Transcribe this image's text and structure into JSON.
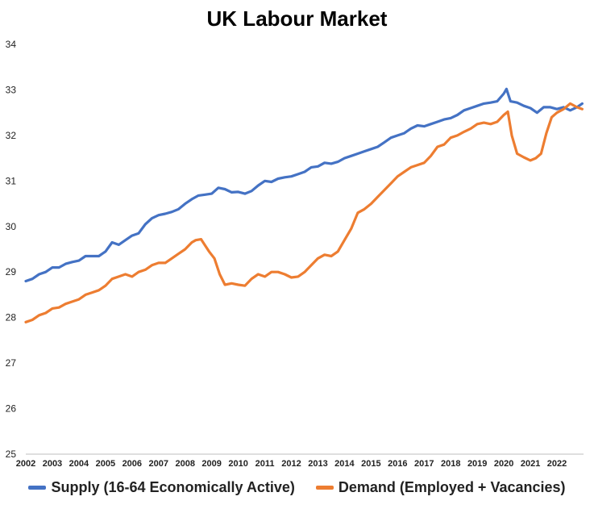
{
  "chart_data": {
    "type": "line",
    "title": "UK Labour Market",
    "xlabel": "",
    "ylabel": "",
    "xlim": [
      2002,
      2023
    ],
    "ylim": [
      25,
      34
    ],
    "grid": false,
    "legend_position": "bottom",
    "x_tick_labels": [
      "2002",
      "2003",
      "2004",
      "2005",
      "2006",
      "2007",
      "2008",
      "2009",
      "2010",
      "2011",
      "2012",
      "2013",
      "2014",
      "2015",
      "2016",
      "2017",
      "2018",
      "2019",
      "2020",
      "2021",
      "2022"
    ],
    "y_tick_labels": [
      "25",
      "26",
      "27",
      "28",
      "29",
      "30",
      "31",
      "32",
      "33",
      "34"
    ],
    "series": [
      {
        "name": "Supply (16-64 Economically Active)",
        "color": "#4472C4",
        "x": [
          2002.0,
          2002.25,
          2002.5,
          2002.75,
          2003.0,
          2003.25,
          2003.5,
          2003.75,
          2004.0,
          2004.25,
          2004.5,
          2004.75,
          2005.0,
          2005.25,
          2005.5,
          2005.75,
          2006.0,
          2006.25,
          2006.5,
          2006.75,
          2007.0,
          2007.25,
          2007.5,
          2007.75,
          2008.0,
          2008.25,
          2008.5,
          2008.75,
          2009.0,
          2009.25,
          2009.5,
          2009.75,
          2010.0,
          2010.25,
          2010.5,
          2010.75,
          2011.0,
          2011.25,
          2011.5,
          2011.75,
          2012.0,
          2012.25,
          2012.5,
          2012.75,
          2013.0,
          2013.25,
          2013.5,
          2013.75,
          2014.0,
          2014.25,
          2014.5,
          2014.75,
          2015.0,
          2015.25,
          2015.5,
          2015.75,
          2016.0,
          2016.25,
          2016.5,
          2016.75,
          2017.0,
          2017.25,
          2017.5,
          2017.75,
          2018.0,
          2018.25,
          2018.5,
          2018.75,
          2019.0,
          2019.25,
          2019.5,
          2019.75,
          2020.0,
          2020.1,
          2020.25,
          2020.5,
          2020.75,
          2021.0,
          2021.25,
          2021.5,
          2021.75,
          2022.0,
          2022.25,
          2022.5,
          2022.75,
          2022.95
        ],
        "values": [
          28.8,
          28.85,
          28.95,
          29.0,
          29.1,
          29.1,
          29.18,
          29.22,
          29.25,
          29.35,
          29.35,
          29.35,
          29.45,
          29.65,
          29.6,
          29.7,
          29.8,
          29.85,
          30.05,
          30.18,
          30.25,
          30.28,
          30.32,
          30.38,
          30.5,
          30.6,
          30.68,
          30.7,
          30.72,
          30.85,
          30.82,
          30.75,
          30.76,
          30.72,
          30.78,
          30.9,
          31.0,
          30.98,
          31.05,
          31.08,
          31.1,
          31.15,
          31.2,
          31.3,
          31.32,
          31.4,
          31.38,
          31.42,
          31.5,
          31.55,
          31.6,
          31.65,
          31.7,
          31.75,
          31.85,
          31.95,
          32.0,
          32.05,
          32.15,
          32.22,
          32.2,
          32.25,
          32.3,
          32.35,
          32.38,
          32.45,
          32.55,
          32.6,
          32.65,
          32.7,
          32.72,
          32.75,
          32.92,
          33.02,
          32.75,
          32.72,
          32.65,
          32.6,
          32.5,
          32.62,
          32.62,
          32.58,
          32.62,
          32.55,
          32.62,
          32.7
        ]
      },
      {
        "name": "Demand (Employed + Vacancies)",
        "color": "#ED7D31",
        "x": [
          2002.0,
          2002.25,
          2002.5,
          2002.75,
          2003.0,
          2003.25,
          2003.5,
          2003.75,
          2004.0,
          2004.25,
          2004.5,
          2004.75,
          2005.0,
          2005.25,
          2005.5,
          2005.75,
          2006.0,
          2006.25,
          2006.5,
          2006.75,
          2007.0,
          2007.25,
          2007.5,
          2007.75,
          2008.0,
          2008.25,
          2008.4,
          2008.6,
          2008.9,
          2009.1,
          2009.3,
          2009.5,
          2009.75,
          2010.0,
          2010.25,
          2010.5,
          2010.75,
          2011.0,
          2011.25,
          2011.5,
          2011.75,
          2012.0,
          2012.25,
          2012.5,
          2012.75,
          2013.0,
          2013.25,
          2013.5,
          2013.75,
          2014.0,
          2014.25,
          2014.5,
          2014.75,
          2015.0,
          2015.25,
          2015.5,
          2015.75,
          2016.0,
          2016.25,
          2016.5,
          2016.75,
          2017.0,
          2017.25,
          2017.5,
          2017.75,
          2018.0,
          2018.25,
          2018.5,
          2018.75,
          2019.0,
          2019.25,
          2019.5,
          2019.75,
          2020.0,
          2020.15,
          2020.3,
          2020.5,
          2020.75,
          2021.0,
          2021.2,
          2021.4,
          2021.6,
          2021.8,
          2022.0,
          2022.25,
          2022.5,
          2022.75,
          2022.95
        ],
        "values": [
          27.9,
          27.95,
          28.05,
          28.1,
          28.2,
          28.22,
          28.3,
          28.35,
          28.4,
          28.5,
          28.55,
          28.6,
          28.7,
          28.85,
          28.9,
          28.95,
          28.9,
          29.0,
          29.05,
          29.15,
          29.2,
          29.2,
          29.3,
          29.4,
          29.5,
          29.65,
          29.7,
          29.72,
          29.45,
          29.3,
          28.95,
          28.72,
          28.75,
          28.72,
          28.7,
          28.85,
          28.95,
          28.9,
          29.0,
          29.0,
          28.95,
          28.88,
          28.9,
          29.0,
          29.15,
          29.3,
          29.38,
          29.35,
          29.45,
          29.7,
          29.95,
          30.3,
          30.38,
          30.5,
          30.65,
          30.8,
          30.95,
          31.1,
          31.2,
          31.3,
          31.35,
          31.4,
          31.55,
          31.75,
          31.8,
          31.95,
          32.0,
          32.08,
          32.15,
          32.25,
          32.28,
          32.25,
          32.3,
          32.45,
          32.52,
          32.0,
          31.6,
          31.52,
          31.45,
          31.5,
          31.6,
          32.05,
          32.4,
          32.5,
          32.58,
          32.7,
          32.62,
          32.58
        ]
      }
    ]
  }
}
